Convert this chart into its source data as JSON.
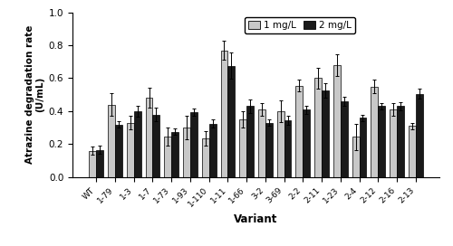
{
  "categories": [
    "WT",
    "1-79",
    "1-3",
    "1-7",
    "1-73",
    "1-93",
    "1-110",
    "1-11",
    "1-66",
    "3-2",
    "3-69",
    "2-2",
    "2-11",
    "1-23",
    "2-4",
    "2-12",
    "2-16",
    "2-13"
  ],
  "values_1mgL": [
    0.16,
    0.44,
    0.33,
    0.48,
    0.245,
    0.3,
    0.235,
    0.77,
    0.35,
    0.41,
    0.4,
    0.555,
    0.6,
    0.68,
    0.245,
    0.55,
    0.41,
    0.31
  ],
  "values_2mgL": [
    0.165,
    0.32,
    0.4,
    0.38,
    0.275,
    0.395,
    0.325,
    0.675,
    0.43,
    0.33,
    0.345,
    0.41,
    0.525,
    0.46,
    0.36,
    0.43,
    0.43,
    0.505
  ],
  "err_1mgL": [
    0.025,
    0.07,
    0.04,
    0.06,
    0.055,
    0.07,
    0.045,
    0.055,
    0.05,
    0.04,
    0.065,
    0.035,
    0.065,
    0.065,
    0.08,
    0.04,
    0.04,
    0.02
  ],
  "err_2mgL": [
    0.025,
    0.02,
    0.035,
    0.04,
    0.02,
    0.02,
    0.025,
    0.08,
    0.04,
    0.02,
    0.03,
    0.025,
    0.045,
    0.03,
    0.02,
    0.02,
    0.025,
    0.03
  ],
  "color_1mgL": "#c8c8c8",
  "color_2mgL": "#1a1a1a",
  "ylabel_line1": "Atrazine degradation rate",
  "ylabel_line2": "(U/mL)",
  "xlabel": "Variant",
  "ylim": [
    0.0,
    1.0
  ],
  "yticks": [
    0.0,
    0.2,
    0.4,
    0.6,
    0.8,
    1.0
  ],
  "legend_1": "1 mg/L",
  "legend_2": "2 mg/L",
  "bar_width": 0.38,
  "figsize": [
    5.0,
    2.72
  ],
  "dpi": 100
}
